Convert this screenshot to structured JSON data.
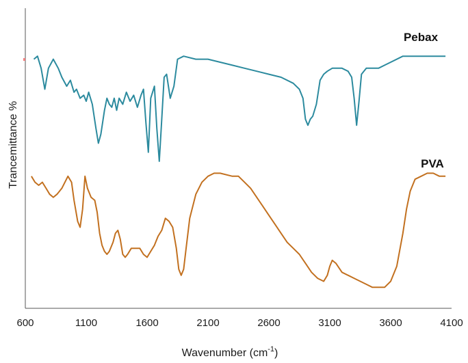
{
  "chart_data": {
    "type": "line",
    "title": "",
    "xlabel": "Wavenumber (cm",
    "xlabel_sup": "-1",
    "xlabel_suffix": ")",
    "ylabel": "Trancemittance %",
    "xlim": [
      600,
      4100
    ],
    "ylim": [
      0,
      100
    ],
    "grid": false,
    "x_ticks": [
      "600",
      "1100",
      "1600",
      "2100",
      "2600",
      "3100",
      "3600",
      "4100"
    ],
    "series": [
      {
        "name": "Pebax",
        "color": "#2b8a9e",
        "points": [
          [
            670,
            83
          ],
          [
            700,
            84
          ],
          [
            730,
            80
          ],
          [
            760,
            73
          ],
          [
            790,
            80
          ],
          [
            830,
            83
          ],
          [
            870,
            80
          ],
          [
            900,
            77
          ],
          [
            940,
            74
          ],
          [
            970,
            76
          ],
          [
            1000,
            72
          ],
          [
            1020,
            73
          ],
          [
            1050,
            70
          ],
          [
            1080,
            71
          ],
          [
            1100,
            69
          ],
          [
            1120,
            72
          ],
          [
            1150,
            68
          ],
          [
            1180,
            60
          ],
          [
            1200,
            55
          ],
          [
            1220,
            58
          ],
          [
            1250,
            66
          ],
          [
            1270,
            70
          ],
          [
            1290,
            68
          ],
          [
            1310,
            67
          ],
          [
            1330,
            70
          ],
          [
            1350,
            66
          ],
          [
            1370,
            70
          ],
          [
            1400,
            68
          ],
          [
            1430,
            72
          ],
          [
            1460,
            69
          ],
          [
            1490,
            71
          ],
          [
            1520,
            67
          ],
          [
            1550,
            71
          ],
          [
            1570,
            73
          ],
          [
            1590,
            62
          ],
          [
            1610,
            52
          ],
          [
            1630,
            70
          ],
          [
            1660,
            74
          ],
          [
            1680,
            60
          ],
          [
            1700,
            49
          ],
          [
            1720,
            63
          ],
          [
            1740,
            77
          ],
          [
            1760,
            78
          ],
          [
            1790,
            70
          ],
          [
            1820,
            74
          ],
          [
            1850,
            83
          ],
          [
            1900,
            84
          ],
          [
            2000,
            83
          ],
          [
            2100,
            83
          ],
          [
            2200,
            82
          ],
          [
            2300,
            81
          ],
          [
            2400,
            80
          ],
          [
            2500,
            79
          ],
          [
            2600,
            78
          ],
          [
            2700,
            77
          ],
          [
            2800,
            75
          ],
          [
            2850,
            73
          ],
          [
            2880,
            70
          ],
          [
            2900,
            63
          ],
          [
            2920,
            61
          ],
          [
            2940,
            63
          ],
          [
            2960,
            64
          ],
          [
            2990,
            68
          ],
          [
            3020,
            76
          ],
          [
            3050,
            78
          ],
          [
            3080,
            79
          ],
          [
            3120,
            80
          ],
          [
            3160,
            80
          ],
          [
            3200,
            80
          ],
          [
            3250,
            79
          ],
          [
            3280,
            77
          ],
          [
            3300,
            70
          ],
          [
            3320,
            61
          ],
          [
            3340,
            69
          ],
          [
            3360,
            78
          ],
          [
            3400,
            80
          ],
          [
            3450,
            80
          ],
          [
            3500,
            80
          ],
          [
            3550,
            81
          ],
          [
            3600,
            82
          ],
          [
            3700,
            84
          ],
          [
            3800,
            84
          ],
          [
            3900,
            84
          ],
          [
            4000,
            84
          ],
          [
            4050,
            84
          ]
        ]
      },
      {
        "name": "PVA",
        "color": "#c2701f",
        "points": [
          [
            650,
            44
          ],
          [
            680,
            42
          ],
          [
            710,
            41
          ],
          [
            740,
            42
          ],
          [
            770,
            40
          ],
          [
            800,
            38
          ],
          [
            830,
            37
          ],
          [
            860,
            38
          ],
          [
            900,
            40
          ],
          [
            950,
            44
          ],
          [
            980,
            42
          ],
          [
            1000,
            36
          ],
          [
            1030,
            29
          ],
          [
            1050,
            27
          ],
          [
            1070,
            33
          ],
          [
            1090,
            44
          ],
          [
            1110,
            40
          ],
          [
            1140,
            37
          ],
          [
            1170,
            36
          ],
          [
            1190,
            32
          ],
          [
            1210,
            25
          ],
          [
            1230,
            21
          ],
          [
            1250,
            19
          ],
          [
            1270,
            18
          ],
          [
            1290,
            19
          ],
          [
            1320,
            22
          ],
          [
            1340,
            25
          ],
          [
            1360,
            26
          ],
          [
            1380,
            23
          ],
          [
            1400,
            18
          ],
          [
            1420,
            17
          ],
          [
            1440,
            18
          ],
          [
            1470,
            20
          ],
          [
            1500,
            20
          ],
          [
            1540,
            20
          ],
          [
            1570,
            18
          ],
          [
            1600,
            17
          ],
          [
            1630,
            19
          ],
          [
            1660,
            21
          ],
          [
            1690,
            24
          ],
          [
            1720,
            26
          ],
          [
            1750,
            30
          ],
          [
            1780,
            29
          ],
          [
            1810,
            27
          ],
          [
            1840,
            20
          ],
          [
            1860,
            13
          ],
          [
            1880,
            11
          ],
          [
            1900,
            13
          ],
          [
            1920,
            20
          ],
          [
            1950,
            30
          ],
          [
            2000,
            38
          ],
          [
            2050,
            42
          ],
          [
            2100,
            44
          ],
          [
            2150,
            45
          ],
          [
            2200,
            45
          ],
          [
            2300,
            44
          ],
          [
            2350,
            44
          ],
          [
            2400,
            42
          ],
          [
            2450,
            40
          ],
          [
            2500,
            37
          ],
          [
            2550,
            34
          ],
          [
            2600,
            31
          ],
          [
            2650,
            28
          ],
          [
            2700,
            25
          ],
          [
            2750,
            22
          ],
          [
            2800,
            20
          ],
          [
            2850,
            18
          ],
          [
            2900,
            15
          ],
          [
            2950,
            12
          ],
          [
            3000,
            10
          ],
          [
            3050,
            9
          ],
          [
            3080,
            11
          ],
          [
            3100,
            14
          ],
          [
            3120,
            16
          ],
          [
            3150,
            15
          ],
          [
            3200,
            12
          ],
          [
            3250,
            11
          ],
          [
            3300,
            10
          ],
          [
            3350,
            9
          ],
          [
            3400,
            8
          ],
          [
            3450,
            7
          ],
          [
            3500,
            7
          ],
          [
            3550,
            7
          ],
          [
            3600,
            9
          ],
          [
            3650,
            14
          ],
          [
            3700,
            25
          ],
          [
            3730,
            33
          ],
          [
            3760,
            39
          ],
          [
            3800,
            43
          ],
          [
            3850,
            44
          ],
          [
            3900,
            45
          ],
          [
            3950,
            45
          ],
          [
            4000,
            44
          ],
          [
            4050,
            44
          ]
        ]
      }
    ]
  }
}
